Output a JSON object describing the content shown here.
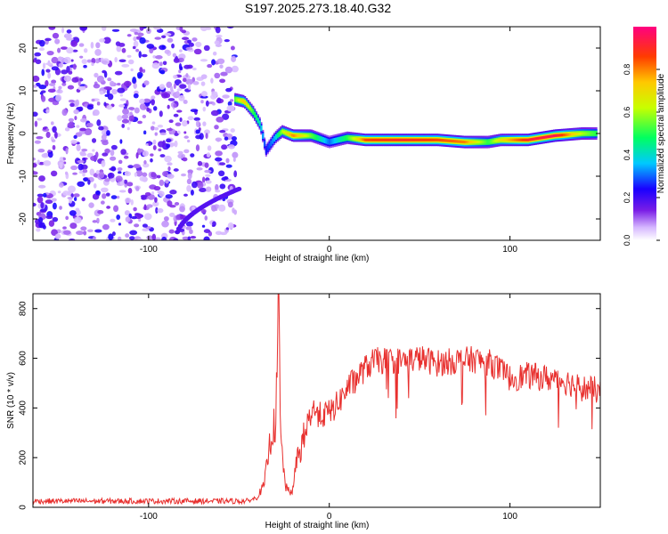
{
  "title": "S197.2025.273.18.40.G32",
  "chart_data": [
    {
      "type": "heatmap",
      "name": "spectrogram",
      "xlabel": "Height of straight line (km)",
      "ylabel": "Frequency (Hz)",
      "xlim": [
        -164,
        150
      ],
      "ylim": [
        -25,
        25
      ],
      "xticks": [
        -100,
        0,
        100
      ],
      "yticks": [
        -20,
        -10,
        0,
        10,
        20
      ],
      "colorbar": {
        "label": "Normalized spectral amplitude",
        "range": [
          0,
          1
        ],
        "ticks": [
          "0.0",
          "0.2",
          "0.4",
          "0.6",
          "0.8"
        ],
        "tick_values": [
          0.0,
          0.2,
          0.4,
          0.6,
          0.8
        ]
      },
      "ridge": {
        "x": [
          -52,
          -47,
          -42,
          -38,
          -35,
          -30,
          -26,
          -20,
          -10,
          0,
          10,
          20,
          40,
          60,
          75,
          88,
          95,
          110,
          125,
          140,
          148
        ],
        "y": [
          8,
          7.5,
          5,
          2,
          -4,
          -1,
          0.5,
          -0.5,
          -0.5,
          -2,
          -1,
          -1.5,
          -1.5,
          -1.5,
          -2,
          -2,
          -1.5,
          -1.5,
          -0.5,
          0,
          0
        ],
        "amplitude": [
          0.55,
          0.75,
          0.5,
          0.4,
          0.25,
          0.35,
          0.6,
          0.8,
          0.55,
          0.3,
          0.5,
          0.85,
          0.9,
          0.85,
          0.8,
          0.5,
          0.7,
          0.9,
          0.95,
          0.6,
          0.5
        ]
      },
      "noise_region": {
        "x_from": -164,
        "x_to": -52,
        "amplitude_range": [
          0.05,
          0.25
        ]
      }
    },
    {
      "type": "line",
      "name": "snr",
      "xlabel": "Height of straight line (km)",
      "ylabel": "SNR (10 * v/v)",
      "xlim": [
        -164,
        150
      ],
      "ylim": [
        0,
        860
      ],
      "xticks": [
        -100,
        0,
        100
      ],
      "yticks": [
        0,
        200,
        400,
        600,
        800
      ],
      "color": "#e8302e",
      "envelope": {
        "x": [
          -164,
          -45,
          -40,
          -36,
          -34,
          -32,
          -30,
          -29,
          -28,
          -27,
          -26,
          -24,
          -22,
          -20,
          -18,
          -16,
          -14,
          -12,
          -10,
          -8,
          -5,
          0,
          5,
          10,
          15,
          20,
          25,
          30,
          40,
          50,
          60,
          70,
          80,
          90,
          100,
          110,
          120,
          130,
          140,
          150
        ],
        "y": [
          25,
          25,
          40,
          90,
          200,
          300,
          330,
          480,
          850,
          300,
          200,
          80,
          60,
          70,
          200,
          230,
          280,
          330,
          390,
          390,
          370,
          380,
          420,
          480,
          520,
          560,
          590,
          590,
          590,
          600,
          580,
          590,
          595,
          580,
          520,
          530,
          520,
          510,
          480,
          470
        ]
      }
    }
  ]
}
